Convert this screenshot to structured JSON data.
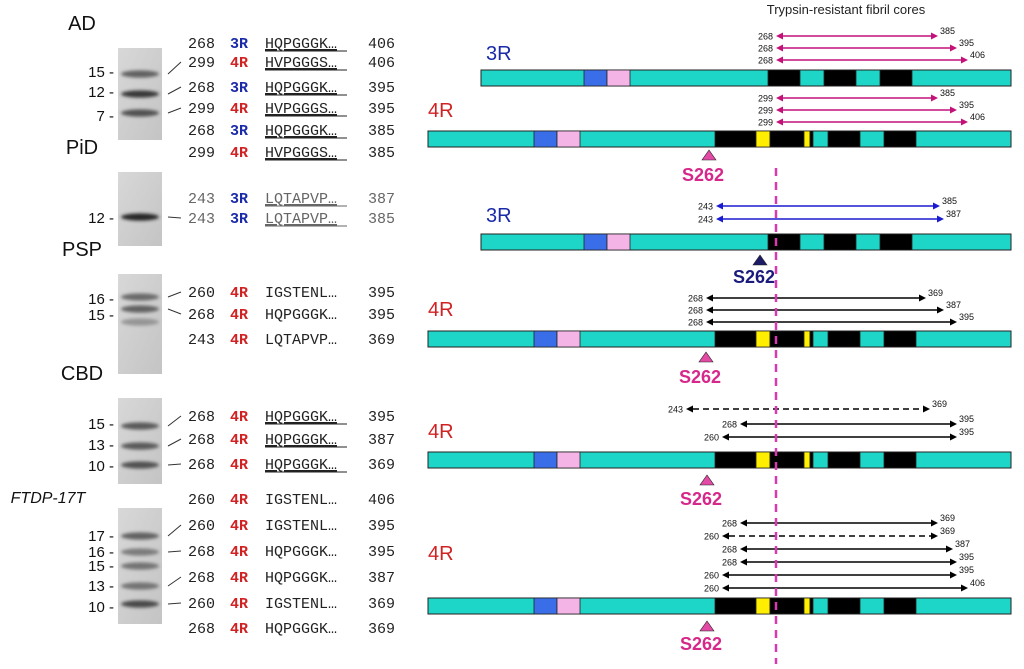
{
  "header": "Trypsin-resistant fibril cores",
  "site_label": "S262",
  "colors": {
    "bar": "#1ed6c8",
    "blue_box": "#3a6ee8",
    "pink_box": "#f4b4e6",
    "core": "#000000",
    "yellow": "#ffee00",
    "magenta": "#c2127a",
    "arrow_blue": "#1a1ad0",
    "triangle_pink": "#e34aa6",
    "triangle_navy": "#1b1b66",
    "label_navy": "#1b1b7e",
    "label_pink": "#d6288a",
    "isoform_3r": "#1a2aa8",
    "isoform_4r": "#d02222"
  },
  "panels": [
    {
      "disease": "AD",
      "italic": false,
      "blot": {
        "y": 48,
        "h": 92,
        "bands": [
          {
            "y": 74,
            "d": 0.6
          },
          {
            "y": 94,
            "d": 0.85
          },
          {
            "y": 113,
            "d": 0.7
          }
        ]
      },
      "markers": [
        {
          "text": "15 -",
          "y": 72
        },
        {
          "text": "12 -",
          "y": 92
        },
        {
          "text": "7 -",
          "y": 116
        }
      ],
      "peptides": [
        {
          "start": "268",
          "iso": "3R",
          "seq": "HQPGGGK…",
          "end": "406",
          "u": true,
          "g": false,
          "y": 43
        },
        {
          "start": "299",
          "iso": "4R",
          "seq": "HVPGGGS…",
          "end": "406",
          "u": true,
          "g": false,
          "y": 62
        },
        {
          "start": "268",
          "iso": "3R",
          "seq": "HQPGGGK…",
          "end": "395",
          "u": true,
          "g": false,
          "y": 87
        },
        {
          "start": "299",
          "iso": "4R",
          "seq": "HVPGGGS…",
          "end": "395",
          "u": true,
          "g": false,
          "y": 108
        },
        {
          "start": "268",
          "iso": "3R",
          "seq": "HQPGGGK…",
          "end": "385",
          "u": true,
          "g": false,
          "y": 130
        },
        {
          "start": "299",
          "iso": "4R",
          "seq": "HVPGGGS…",
          "end": "385",
          "u": true,
          "g": false,
          "y": 152
        }
      ],
      "tracks": [
        {
          "iso": "3R",
          "type": "3R",
          "y": 70,
          "label_y": 60,
          "label_x": 486,
          "tri": null,
          "arrows": [
            {
              "from": "268",
              "to": "385",
              "color": "magenta",
              "dash": false,
              "y": 36,
              "x1": 776,
              "x2": 938
            },
            {
              "from": "268",
              "to": "395",
              "color": "magenta",
              "dash": false,
              "y": 48,
              "x1": 776,
              "x2": 957
            },
            {
              "from": "268",
              "to": "406",
              "color": "magenta",
              "dash": false,
              "y": 60,
              "x1": 776,
              "x2": 968
            }
          ]
        },
        {
          "iso": "4R",
          "type": "4R",
          "y": 131,
          "label_y": 117,
          "label_x": 428,
          "tri": {
            "x": 709,
            "y": 150,
            "label_y": 181,
            "color": "pink"
          },
          "arrows": [
            {
              "from": "299",
              "to": "385",
              "color": "magenta",
              "dash": false,
              "y": 98,
              "x1": 776,
              "x2": 938
            },
            {
              "from": "299",
              "to": "395",
              "color": "magenta",
              "dash": false,
              "y": 110,
              "x1": 776,
              "x2": 957
            },
            {
              "from": "299",
              "to": "406",
              "color": "magenta",
              "dash": false,
              "y": 122,
              "x1": 776,
              "x2": 968
            }
          ]
        }
      ]
    },
    {
      "disease": "PiD",
      "italic": false,
      "blot": {
        "y": 172,
        "h": 74,
        "bands": [
          {
            "y": 217,
            "d": 0.95
          }
        ]
      },
      "markers": [
        {
          "text": "12 -",
          "y": 218
        }
      ],
      "peptides": [
        {
          "start": "243",
          "iso": "3R",
          "seq": "LQTAPVP…",
          "end": "387",
          "u": true,
          "g": true,
          "y": 198
        },
        {
          "start": "243",
          "iso": "3R",
          "seq": "LQTAPVP…",
          "end": "385",
          "u": true,
          "g": true,
          "y": 218
        }
      ],
      "tracks": [
        {
          "iso": "3R",
          "type": "3R",
          "y": 234,
          "label_y": 222,
          "label_x": 486,
          "tri": {
            "x": 760,
            "y": 255,
            "label_y": 283,
            "color": "navy"
          },
          "arrows": [
            {
              "from": "243",
              "to": "385",
              "color": "blue",
              "dash": false,
              "y": 206,
              "x1": 716,
              "x2": 940
            },
            {
              "from": "243",
              "to": "387",
              "color": "blue",
              "dash": false,
              "y": 219,
              "x1": 716,
              "x2": 944
            }
          ]
        }
      ]
    },
    {
      "disease": "PSP",
      "italic": false,
      "blot": {
        "y": 274,
        "h": 100,
        "bands": [
          {
            "y": 297,
            "d": 0.55
          },
          {
            "y": 309,
            "d": 0.6
          },
          {
            "y": 322,
            "d": 0.3
          }
        ]
      },
      "markers": [
        {
          "text": "16 -",
          "y": 299
        },
        {
          "text": "15 -",
          "y": 315
        }
      ],
      "peptides": [
        {
          "start": "260",
          "iso": "4R",
          "seq": "IGSTENL…",
          "end": "395",
          "u": false,
          "g": false,
          "y": 292
        },
        {
          "start": "268",
          "iso": "4R",
          "seq": "HQPGGGK…",
          "end": "395",
          "u": false,
          "g": false,
          "y": 314
        },
        {
          "start": "243",
          "iso": "4R",
          "seq": "LQTAPVP…",
          "end": "369",
          "u": false,
          "g": false,
          "y": 339
        }
      ],
      "tracks": [
        {
          "iso": "4R",
          "type": "4R",
          "y": 331,
          "label_y": 316,
          "label_x": 428,
          "tri": {
            "x": 706,
            "y": 352,
            "label_y": 383,
            "color": "pink"
          },
          "arrows": [
            {
              "from": "268",
              "to": "369",
              "color": "black",
              "dash": false,
              "y": 298,
              "x1": 706,
              "x2": 926
            },
            {
              "from": "268",
              "to": "387",
              "color": "black",
              "dash": false,
              "y": 310,
              "x1": 706,
              "x2": 944
            },
            {
              "from": "268",
              "to": "395",
              "color": "black",
              "dash": false,
              "y": 322,
              "x1": 706,
              "x2": 957
            }
          ]
        }
      ]
    },
    {
      "disease": "CBD",
      "italic": false,
      "blot": {
        "y": 398,
        "h": 86,
        "bands": [
          {
            "y": 426,
            "d": 0.65
          },
          {
            "y": 446,
            "d": 0.65
          },
          {
            "y": 465,
            "d": 0.7
          }
        ]
      },
      "markers": [
        {
          "text": "15 -",
          "y": 424
        },
        {
          "text": "13 -",
          "y": 445
        },
        {
          "text": "10 -",
          "y": 466
        }
      ],
      "peptides": [
        {
          "start": "268",
          "iso": "4R",
          "seq": "HQPGGGK…",
          "end": "395",
          "u": true,
          "g": false,
          "y": 416
        },
        {
          "start": "268",
          "iso": "4R",
          "seq": "HQPGGGK…",
          "end": "387",
          "u": true,
          "g": false,
          "y": 439
        },
        {
          "start": "268",
          "iso": "4R",
          "seq": "HQPGGGK…",
          "end": "369",
          "u": true,
          "g": false,
          "y": 464
        }
      ],
      "tracks": [
        {
          "iso": "4R",
          "type": "4R",
          "y": 452,
          "label_y": 438,
          "label_x": 428,
          "tri": {
            "x": 707,
            "y": 475,
            "label_y": 505,
            "color": "pink"
          },
          "arrows": [
            {
              "from": "243",
              "to": "369",
              "color": "black",
              "dash": true,
              "y": 409,
              "x1": 686,
              "x2": 930
            },
            {
              "from": "268",
              "to": "395",
              "color": "black",
              "dash": false,
              "y": 424,
              "x1": 740,
              "x2": 957
            },
            {
              "from": "260",
              "to": "395",
              "color": "black",
              "dash": false,
              "y": 437,
              "x1": 722,
              "x2": 957
            }
          ]
        }
      ]
    },
    {
      "disease": "FTDP-17T",
      "italic": true,
      "blot": {
        "y": 508,
        "h": 116,
        "bands": [
          {
            "y": 536,
            "d": 0.6
          },
          {
            "y": 552,
            "d": 0.45
          },
          {
            "y": 566,
            "d": 0.5
          },
          {
            "y": 586,
            "d": 0.5
          },
          {
            "y": 604,
            "d": 0.75
          }
        ]
      },
      "markers": [
        {
          "text": "17 -",
          "y": 536
        },
        {
          "text": "16 -",
          "y": 552
        },
        {
          "text": "15 -",
          "y": 566
        },
        {
          "text": "13 -",
          "y": 586
        },
        {
          "text": "10 -",
          "y": 607
        }
      ],
      "peptides": [
        {
          "start": "260",
          "iso": "4R",
          "seq": "IGSTENL…",
          "end": "406",
          "u": false,
          "g": false,
          "y": 499
        },
        {
          "start": "260",
          "iso": "4R",
          "seq": "IGSTENL…",
          "end": "395",
          "u": false,
          "g": false,
          "y": 525
        },
        {
          "start": "268",
          "iso": "4R",
          "seq": "HQPGGGK…",
          "end": "395",
          "u": false,
          "g": false,
          "y": 551
        },
        {
          "start": "268",
          "iso": "4R",
          "seq": "HQPGGGK…",
          "end": "387",
          "u": false,
          "g": false,
          "y": 577
        },
        {
          "start": "260",
          "iso": "4R",
          "seq": "IGSTENL…",
          "end": "369",
          "u": false,
          "g": false,
          "y": 603
        },
        {
          "start": "268",
          "iso": "4R",
          "seq": "HQPGGGK…",
          "end": "369",
          "u": false,
          "g": false,
          "y": 628
        }
      ],
      "tracks": [
        {
          "iso": "4R",
          "type": "4R",
          "y": 598,
          "label_y": 560,
          "label_x": 428,
          "tri": {
            "x": 707,
            "y": 621,
            "label_y": 650,
            "color": "pink"
          },
          "arrows": [
            {
              "from": "268",
              "to": "369",
              "color": "black",
              "dash": false,
              "y": 523,
              "x1": 740,
              "x2": 938
            },
            {
              "from": "260",
              "to": "369",
              "color": "black",
              "dash": true,
              "y": 536,
              "x1": 722,
              "x2": 938
            },
            {
              "from": "268",
              "to": "387",
              "color": "black",
              "dash": false,
              "y": 549,
              "x1": 740,
              "x2": 953
            },
            {
              "from": "268",
              "to": "395",
              "color": "black",
              "dash": false,
              "y": 562,
              "x1": 740,
              "x2": 957
            },
            {
              "from": "260",
              "to": "395",
              "color": "black",
              "dash": false,
              "y": 575,
              "x1": 722,
              "x2": 957
            },
            {
              "from": "260",
              "to": "406",
              "color": "black",
              "dash": false,
              "y": 588,
              "x1": 722,
              "x2": 968
            }
          ]
        }
      ]
    }
  ]
}
